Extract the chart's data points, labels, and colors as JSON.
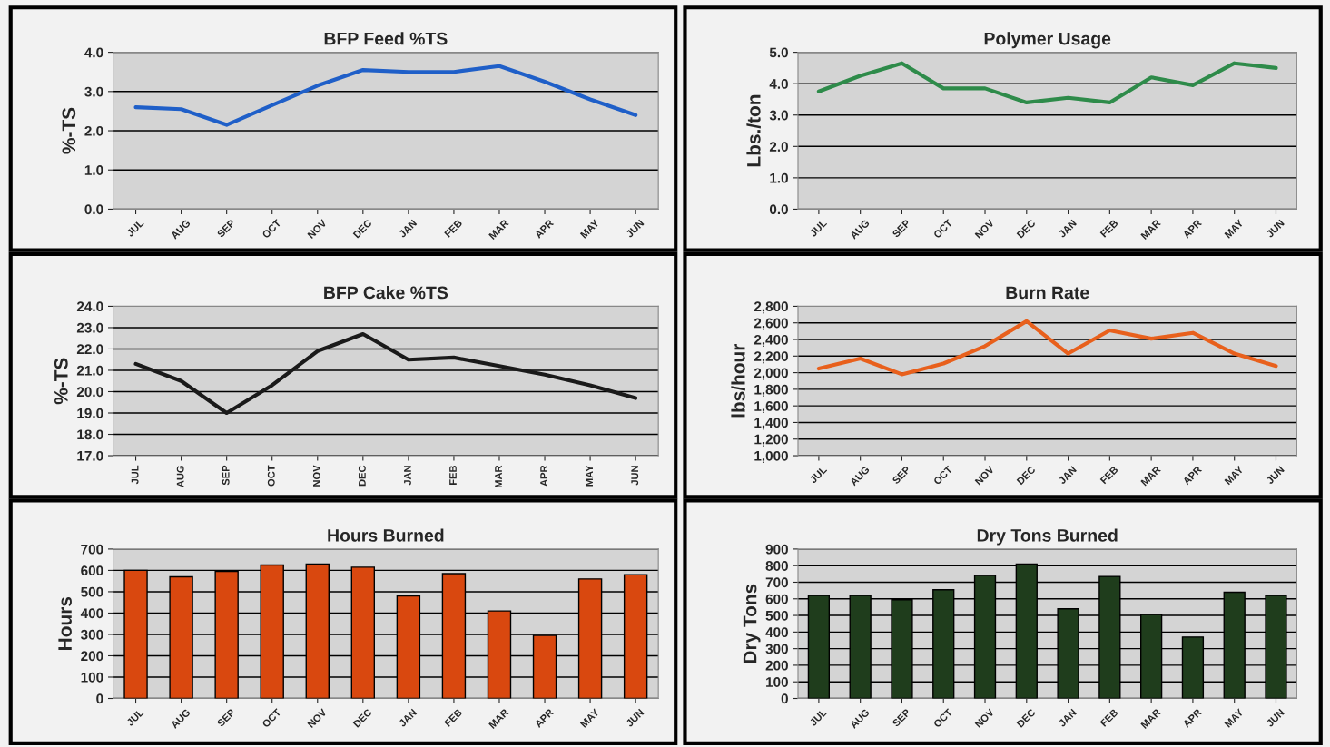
{
  "chart_data": [
    {
      "type": "line",
      "title": "BFP Feed %TS",
      "ylabel": "%-TS",
      "categories": [
        "JUL",
        "AUG",
        "SEP",
        "OCT",
        "NOV",
        "DEC",
        "JAN",
        "FEB",
        "MAR",
        "APR",
        "MAY",
        "JUN"
      ],
      "series": [
        {
          "color": "#1f5fc8",
          "values": [
            2.6,
            2.55,
            2.15,
            2.65,
            3.15,
            3.55,
            3.5,
            3.5,
            3.65,
            3.25,
            2.8,
            2.4
          ]
        }
      ],
      "ylim": [
        0.0,
        4.0
      ],
      "yticks": [
        {
          "value": 0,
          "label": "0.0"
        },
        {
          "value": 1,
          "label": "1.0"
        },
        {
          "value": 2,
          "label": "2.0"
        },
        {
          "value": 3,
          "label": "3.0"
        },
        {
          "value": 4,
          "label": "4.0"
        }
      ],
      "grid": "y",
      "line_style": "solid"
    },
    {
      "type": "line",
      "title": "Polymer Usage",
      "ylabel": "Lbs./ton",
      "categories": [
        "JUL",
        "AUG",
        "SEP",
        "OCT",
        "NOV",
        "DEC",
        "JAN",
        "FEB",
        "MAR",
        "APR",
        "MAY",
        "JUN"
      ],
      "series": [
        {
          "color": "#2e8b4a",
          "values": [
            3.75,
            4.25,
            4.65,
            3.85,
            3.85,
            3.4,
            3.55,
            3.4,
            4.2,
            3.95,
            4.65,
            4.5
          ]
        }
      ],
      "ylim": [
        0.0,
        5.0
      ],
      "yticks": [
        {
          "value": 0,
          "label": "0.0"
        },
        {
          "value": 1,
          "label": "1.0"
        },
        {
          "value": 2,
          "label": "2.0"
        },
        {
          "value": 3,
          "label": "3.0"
        },
        {
          "value": 4,
          "label": "4.0"
        },
        {
          "value": 5,
          "label": "5.0"
        }
      ],
      "grid": "y",
      "line_style": "solid"
    },
    {
      "type": "line",
      "title": "BFP Cake %TS",
      "ylabel": "%-TS",
      "categories": [
        "JUL",
        "AUG",
        "SEP",
        "OCT",
        "NOV",
        "DEC",
        "JAN",
        "FEB",
        "MAR",
        "APR",
        "MAY",
        "JUN"
      ],
      "series": [
        {
          "color": "#1a1a1a",
          "values": [
            21.3,
            20.5,
            19.0,
            20.3,
            21.9,
            22.7,
            21.5,
            21.6,
            21.2,
            20.8,
            20.3,
            19.7
          ]
        }
      ],
      "ylim": [
        17.0,
        24.0
      ],
      "yticks": [
        {
          "value": 17,
          "label": "17.0"
        },
        {
          "value": 18,
          "label": "18.0"
        },
        {
          "value": 19,
          "label": "19.0"
        },
        {
          "value": 20,
          "label": "20.0"
        },
        {
          "value": 21,
          "label": "21.0"
        },
        {
          "value": 22,
          "label": "22.0"
        },
        {
          "value": 23,
          "label": "23.0"
        },
        {
          "value": 24,
          "label": "24.0"
        }
      ],
      "grid": "y",
      "line_style": "solid"
    },
    {
      "type": "line",
      "title": "Burn Rate",
      "ylabel": "lbs/hour",
      "categories": [
        "JUL",
        "AUG",
        "SEP",
        "OCT",
        "NOV",
        "DEC",
        "JAN",
        "FEB",
        "MAR",
        "APR",
        "MAY",
        "JUN"
      ],
      "series": [
        {
          "color": "#e8601c",
          "values": [
            2050,
            2170,
            1980,
            2110,
            2320,
            2620,
            2230,
            2510,
            2410,
            2480,
            2230,
            2080
          ]
        }
      ],
      "ylim": [
        1000,
        2800
      ],
      "yticks": [
        {
          "value": 1000,
          "label": "1,000"
        },
        {
          "value": 1200,
          "label": "1,200"
        },
        {
          "value": 1400,
          "label": "1,400"
        },
        {
          "value": 1600,
          "label": "1,600"
        },
        {
          "value": 1800,
          "label": "1,800"
        },
        {
          "value": 2000,
          "label": "2,000"
        },
        {
          "value": 2200,
          "label": "2,200"
        },
        {
          "value": 2400,
          "label": "2,400"
        },
        {
          "value": 2600,
          "label": "2,600"
        },
        {
          "value": 2800,
          "label": "2,800"
        }
      ],
      "grid": "y",
      "line_style": "solid"
    },
    {
      "type": "bar",
      "title": "Hours Burned",
      "ylabel": "Hours",
      "categories": [
        "JUL",
        "AUG",
        "SEP",
        "OCT",
        "NOV",
        "DEC",
        "JAN",
        "FEB",
        "MAR",
        "APR",
        "MAY",
        "JUN"
      ],
      "series": [
        {
          "color": "#d9480f",
          "values": [
            600,
            570,
            595,
            625,
            630,
            615,
            480,
            585,
            410,
            295,
            560,
            580
          ]
        }
      ],
      "ylim": [
        0,
        700
      ],
      "yticks": [
        0,
        100,
        200,
        300,
        400,
        500,
        600,
        700
      ],
      "grid": "y"
    },
    {
      "type": "bar",
      "title": "Dry Tons Burned",
      "ylabel": "Dry Tons",
      "categories": [
        "JUL",
        "AUG",
        "SEP",
        "OCT",
        "NOV",
        "DEC",
        "JAN",
        "FEB",
        "MAR",
        "APR",
        "MAY",
        "JUN"
      ],
      "series": [
        {
          "color": "#1f3d1c",
          "values": [
            620,
            620,
            595,
            655,
            740,
            810,
            540,
            735,
            505,
            370,
            640,
            620
          ]
        }
      ],
      "ylim": [
        0,
        900
      ],
      "yticks": [
        0,
        100,
        200,
        300,
        400,
        500,
        600,
        700,
        800,
        900
      ],
      "grid": "y"
    }
  ]
}
